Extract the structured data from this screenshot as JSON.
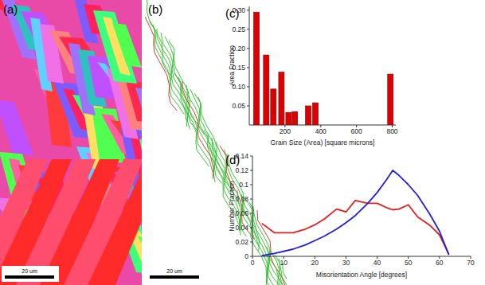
{
  "maps": [
    {
      "label": "(a)",
      "scale_bar": "20 um"
    },
    {
      "label": "(b)",
      "scale_bar": "20 um"
    }
  ],
  "chart_data": [
    {
      "type": "bar",
      "title": "(c)",
      "x_label": "Grain Size (Area) [square microns]",
      "y_label": "Area Fraction",
      "x": [
        40,
        95,
        135,
        180,
        220,
        255,
        330,
        370,
        790
      ],
      "values": [
        0.295,
        0.183,
        0.094,
        0.138,
        0.033,
        0.035,
        0.05,
        0.058,
        0.133
      ],
      "color": "#dd0000",
      "xlim": [
        0,
        820
      ],
      "xticks": [
        200,
        400,
        600,
        800
      ],
      "ylim": [
        0,
        0.31
      ],
      "yticks": [
        0.05,
        {
          "value": 0.1,
          "label": "0.10"
        },
        0.15,
        {
          "value": 0.2,
          "label": "0.20"
        },
        0.25,
        {
          "value": 0.3,
          "label": "0.30"
        }
      ]
    },
    {
      "type": "line",
      "title": "(d)",
      "x_label": "Misorientation Angle [degrees]",
      "y_label": "Number Fraction",
      "x": [
        3,
        7,
        13,
        17,
        20,
        23,
        27,
        30,
        33,
        37,
        40,
        43,
        45,
        47,
        50,
        53,
        57,
        60,
        63
      ],
      "series": [
        {
          "color": "#e02020",
          "values": [
            0.046,
            0.033,
            0.033,
            0.038,
            0.044,
            0.052,
            0.066,
            0.062,
            0.078,
            0.074,
            0.074,
            0.068,
            0.065,
            0.066,
            0.072,
            0.055,
            0.043,
            0.03,
            0.003
          ]
        },
        {
          "color": "#1f1fdd",
          "values": [
            0.001,
            0.004,
            0.01,
            0.016,
            0.022,
            0.028,
            0.038,
            0.047,
            0.057,
            0.074,
            0.089,
            0.107,
            0.12,
            0.113,
            0.1,
            0.085,
            0.058,
            0.035,
            0.002
          ]
        }
      ],
      "xlim": [
        0,
        70
      ],
      "xticks": [
        0,
        10,
        20,
        30,
        40,
        50,
        60,
        70
      ],
      "ylim": [
        0,
        0.14
      ],
      "yticks": [
        0,
        0.02,
        0.04,
        0.06,
        0.08,
        0.1,
        0.12,
        0.14
      ]
    }
  ]
}
